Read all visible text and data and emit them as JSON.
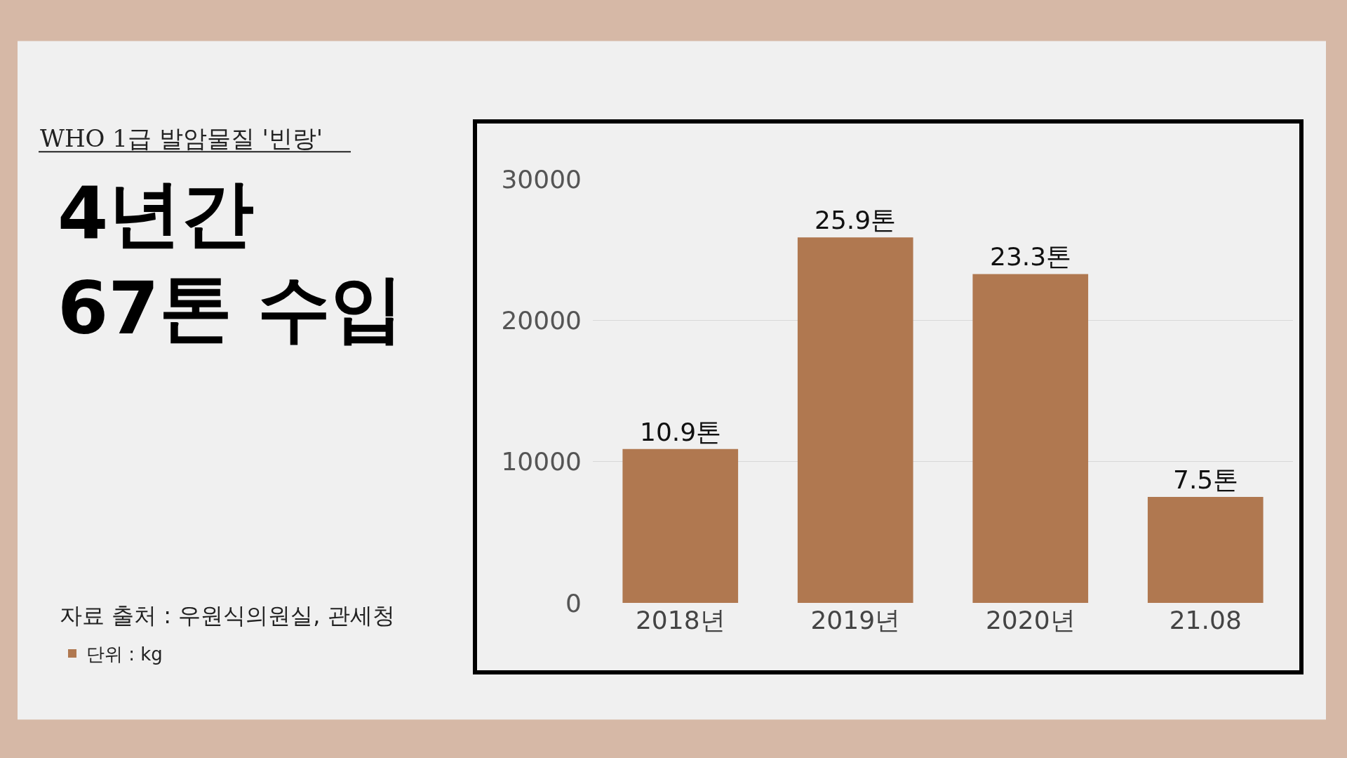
{
  "chart_data": {
    "type": "bar",
    "title": "4년간\n67톤 수입",
    "subtitle": "WHO 1급 발암물질 '빈랑'",
    "annotations": [
      "자료 출처 : 우원식의원실, 관세청",
      {
        "text": "10.9톤",
        "x": "2018년",
        "y": 10900
      },
      {
        "text": "25.9톤",
        "x": "2019년",
        "y": 25900
      },
      {
        "text": "23.3톤",
        "x": "2020년",
        "y": 23300
      },
      {
        "text": "7.5톤",
        "x": "21.08",
        "y": 7500
      }
    ],
    "categories": [
      "2018년",
      "2019년",
      "2020년",
      "21.08"
    ],
    "series": [
      {
        "name": "단위 : kg",
        "color": "#b07850",
        "values": [
          10900,
          25900,
          23300,
          7500
        ]
      }
    ],
    "ylim": [
      0,
      30000
    ],
    "yticks": [
      0,
      10000,
      20000,
      30000
    ],
    "grid": "y",
    "legend": "bottom left"
  }
}
